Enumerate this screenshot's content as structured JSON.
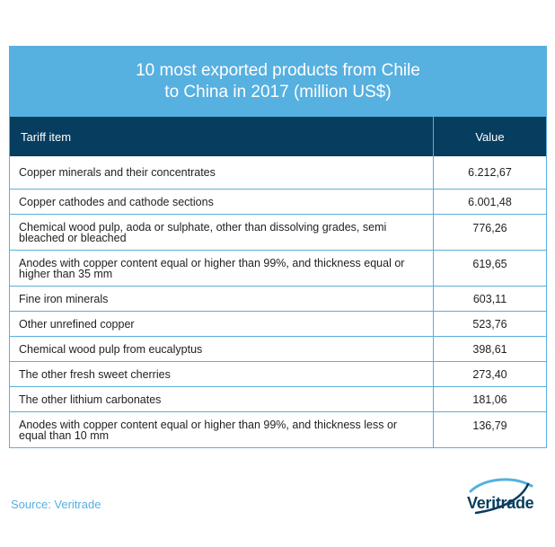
{
  "chart_data": {
    "type": "table",
    "title_line1": "10 most exported products from Chile",
    "title_line2": "to China in 2017 (million US$)",
    "columns": [
      "Tariff item",
      "Value"
    ],
    "rows": [
      {
        "item": "Copper minerals and their concentrates",
        "value": "6.212,67"
      },
      {
        "item": "Copper cathodes and cathode sections",
        "value": "6.001,48"
      },
      {
        "item": "Chemical wood pulp, aoda or sulphate, other than dissolving grades, semi bleached or bleached",
        "value": "776,26"
      },
      {
        "item": "Anodes with copper content equal or higher than 99%, and thickness equal or higher than 35 mm",
        "value": "619,65"
      },
      {
        "item": "Fine iron minerals",
        "value": "603,11"
      },
      {
        "item": "Other unrefined copper",
        "value": "523,76"
      },
      {
        "item": "Chemical wood pulp from eucalyptus",
        "value": "398,61"
      },
      {
        "item": "The other fresh sweet cherries",
        "value": "273,40"
      },
      {
        "item": "The other lithium carbonates",
        "value": "181,06"
      },
      {
        "item": "Anodes with copper content equal or higher than 99%, and thickness less or equal than 10 mm",
        "value": "136,79"
      }
    ]
  },
  "footer": {
    "source": "Source: Veritrade",
    "logo_text": "Veritrade"
  },
  "colors": {
    "title_bg": "#56b0e0",
    "header_bg": "#073d5e",
    "border": "#5aafdc"
  }
}
